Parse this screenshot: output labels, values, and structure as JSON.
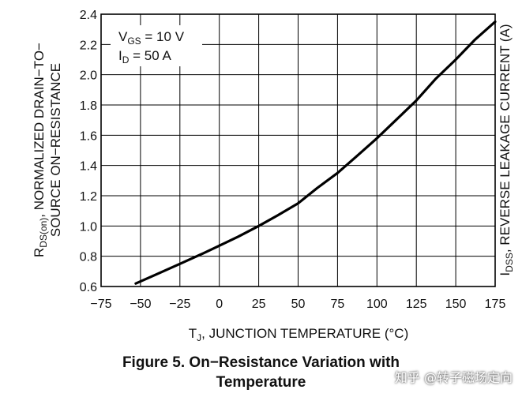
{
  "chart_data": {
    "type": "line",
    "title": "Figure 5. On−Resistance Variation with Temperature",
    "title_lines": [
      "Figure 5. On−Resistance Variation with",
      "Temperature"
    ],
    "xlabel": "J, JUNCTION TEMPERATURE (°C)",
    "xlabel_prefix": "T",
    "ylabel_left_line1_main": "R",
    "ylabel_left_line1_sub": "DS(on)",
    "ylabel_left_line1_rest": ", NORMALIZED DRAIN−TO−",
    "ylabel_left_line2": "SOURCE ON−RESISTANCE",
    "ylabel_right_main": "I",
    "ylabel_right_sub": "DSS",
    "ylabel_right_rest": ", REVERSE LEAKAGE CURRENT (A)",
    "xlim": [
      -75,
      175
    ],
    "ylim": [
      0.6,
      2.4
    ],
    "x_ticks": [
      -75,
      -50,
      -25,
      0,
      25,
      50,
      75,
      100,
      125,
      150,
      175
    ],
    "x_tick_labels": [
      "−75",
      "−50",
      "−25",
      "0",
      "25",
      "50",
      "75",
      "100",
      "125",
      "150",
      "175"
    ],
    "y_ticks": [
      0.6,
      0.8,
      1.0,
      1.2,
      1.4,
      1.6,
      1.8,
      2.0,
      2.2,
      2.4
    ],
    "y_tick_labels": [
      "0.6",
      "0.8",
      "1.0",
      "1.2",
      "1.4",
      "1.6",
      "1.8",
      "2.0",
      "2.2",
      "2.4"
    ],
    "grid": true,
    "legend_position": "top-left",
    "annotation": {
      "line1_main": "V",
      "line1_sub": "GS",
      "line1_rest": " = 10 V",
      "line2_main": "I",
      "line2_sub": "D",
      "line2_rest": " = 50 A"
    },
    "series": [
      {
        "name": "RDS(on) normalized",
        "x": [
          -53,
          -40,
          -25,
          -10,
          0,
          12,
          25,
          37,
          50,
          62,
          75,
          87,
          100,
          112,
          125,
          137,
          150,
          162,
          175
        ],
        "y": [
          0.62,
          0.68,
          0.75,
          0.82,
          0.87,
          0.93,
          1.0,
          1.07,
          1.15,
          1.25,
          1.35,
          1.46,
          1.58,
          1.7,
          1.83,
          1.97,
          2.1,
          2.23,
          2.35
        ]
      }
    ]
  },
  "watermark": "知乎 @转子磁场定向",
  "colors": {
    "line": "#000000",
    "grid": "#000000",
    "text": "#111111"
  }
}
